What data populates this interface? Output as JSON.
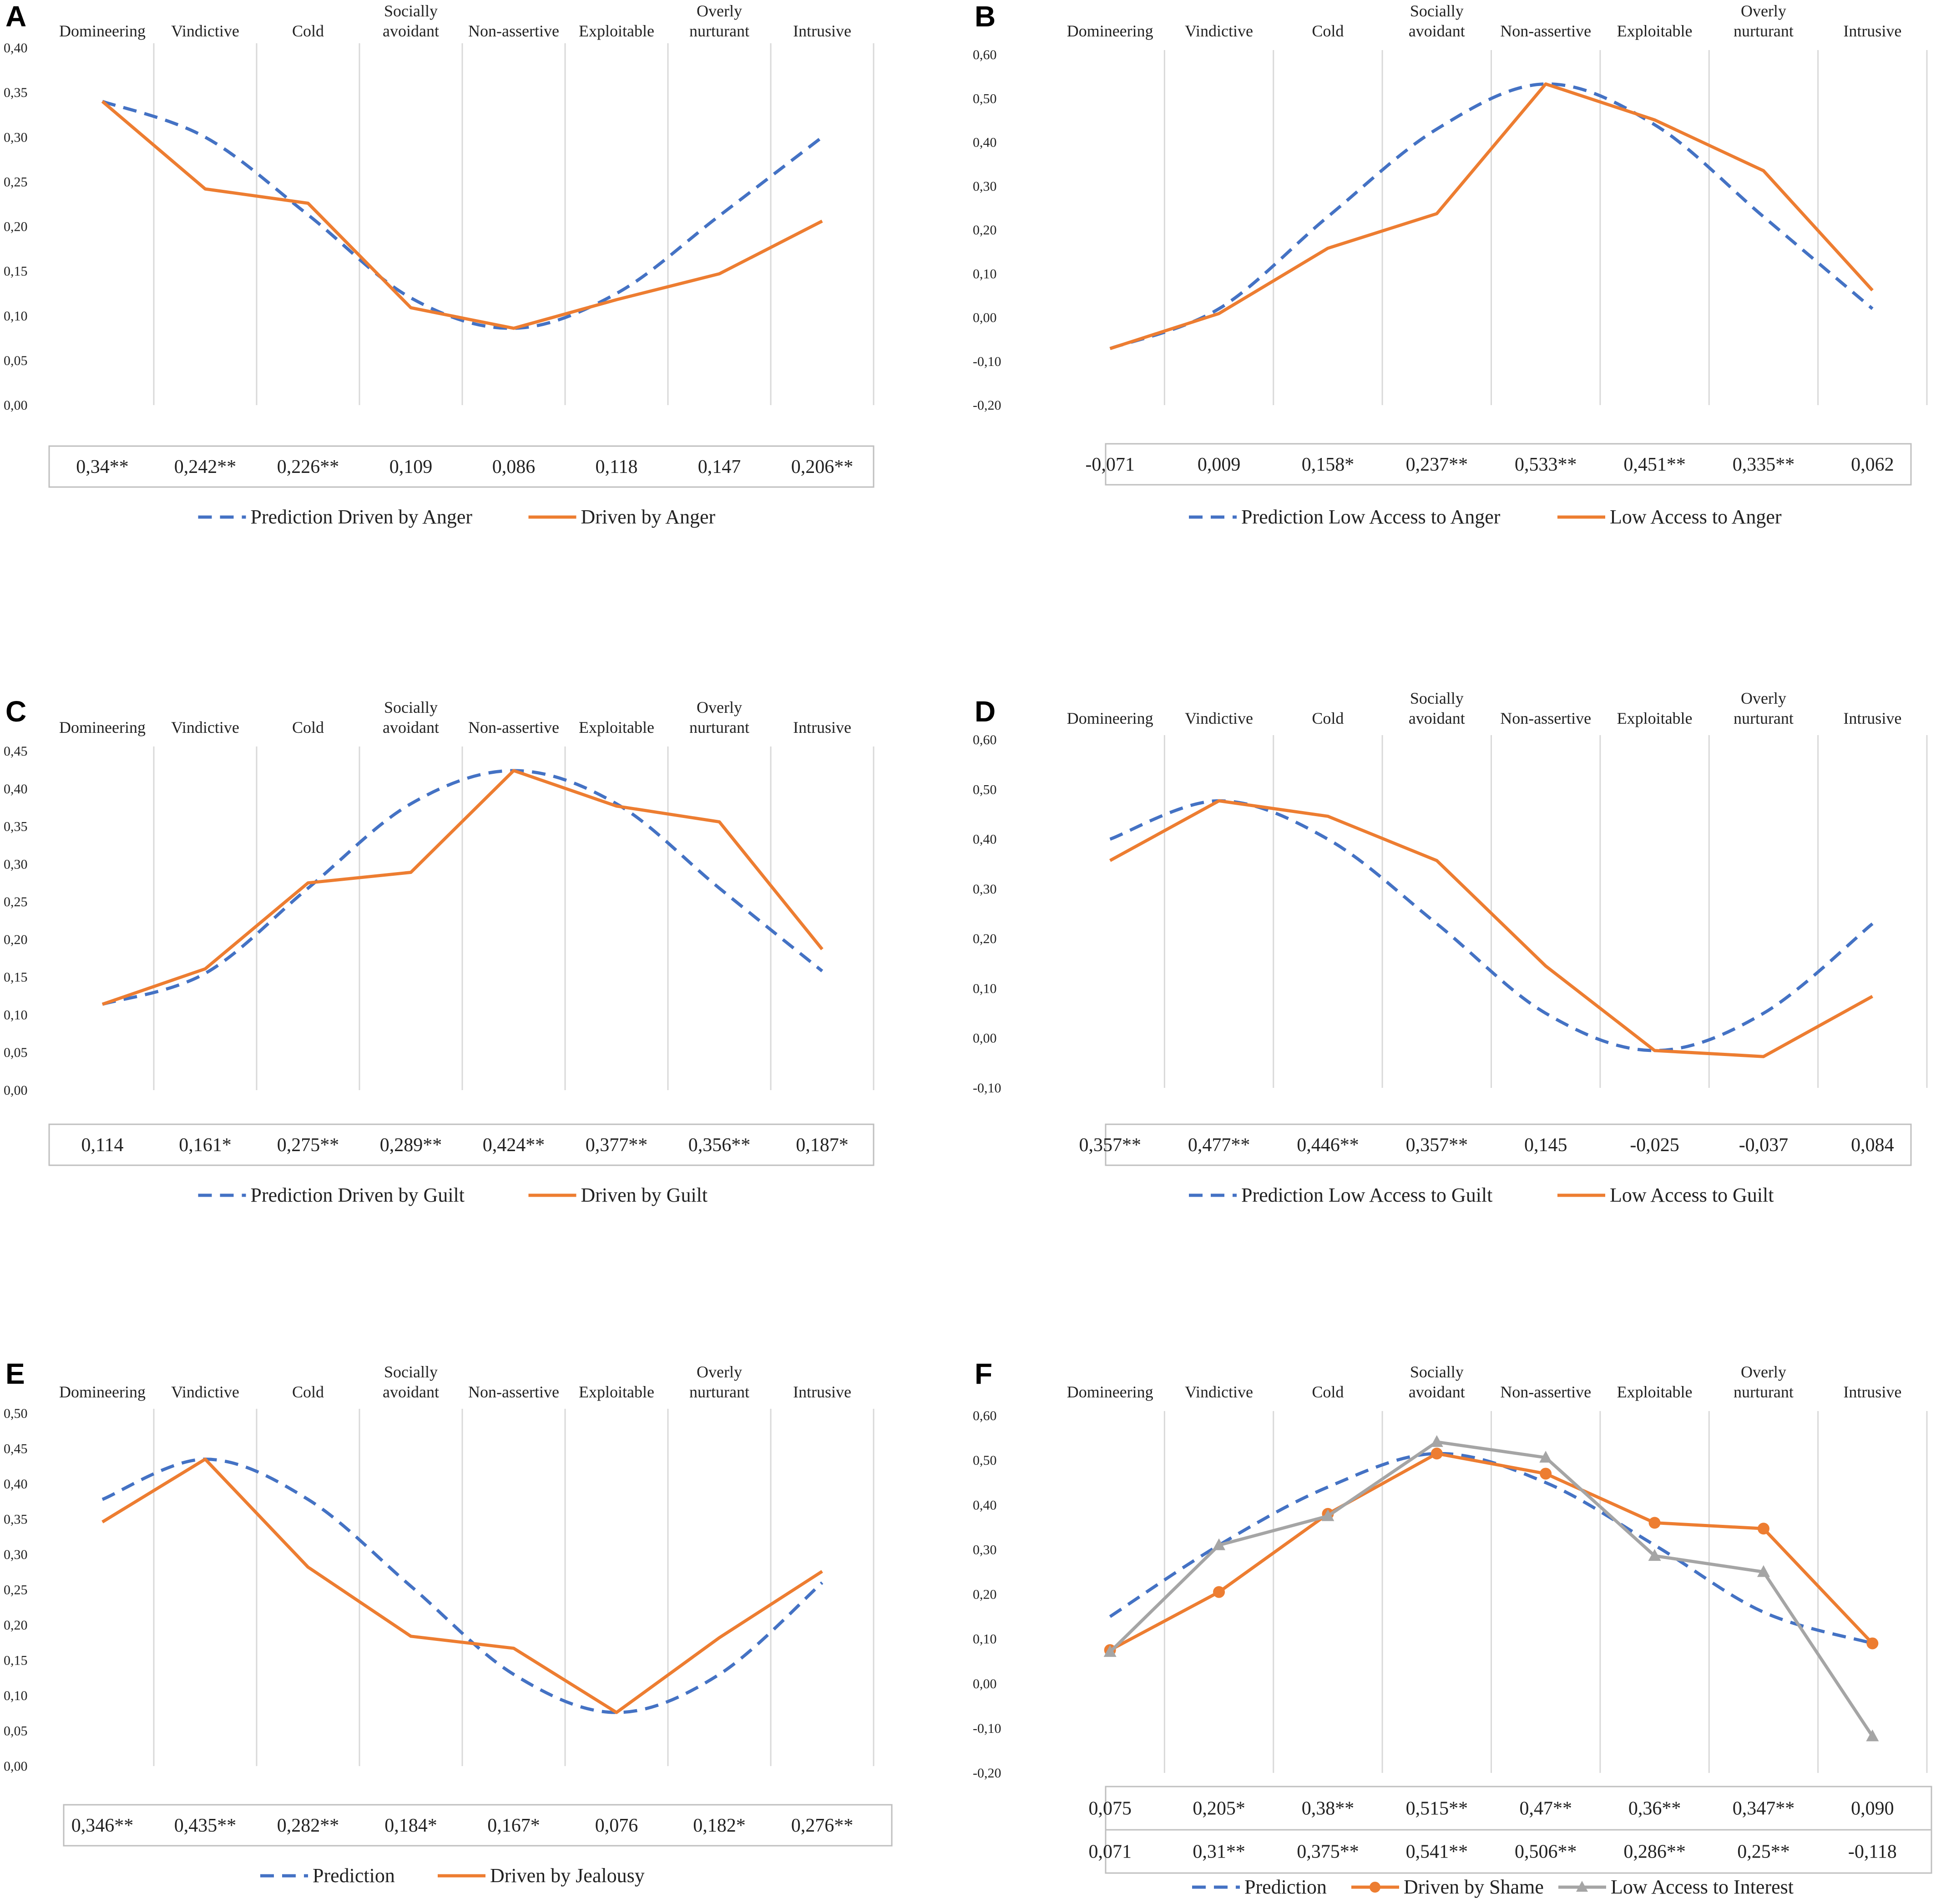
{
  "colors": {
    "prediction": "#4472C4",
    "observed": "#ED7D31",
    "secondary": "#A5A5A5",
    "grid": "#D9D9D9",
    "text": "#222222"
  },
  "chart_data": [
    {
      "panel": "A",
      "type": "line",
      "categories": [
        "Domineering",
        "Vindictive",
        "Cold",
        "Socially avoidant",
        "Non-assertive",
        "Exploitable",
        "Overly nurturant",
        "Intrusive"
      ],
      "y_ticks": [
        "0,00",
        "0,05",
        "0,10",
        "0,15",
        "0,20",
        "0,25",
        "0,30",
        "0,35",
        "0,40"
      ],
      "ylim": [
        0,
        0.4
      ],
      "series": [
        {
          "name": "Prediction Driven by Anger",
          "style": "dashed",
          "color": "#4472C4",
          "values": [
            0.34,
            0.3,
            0.213,
            0.12,
            0.086,
            0.125,
            0.212,
            0.3
          ]
        },
        {
          "name": "Driven by Anger",
          "style": "solid",
          "color": "#ED7D31",
          "values": [
            0.34,
            0.242,
            0.226,
            0.109,
            0.086,
            0.118,
            0.147,
            0.206
          ]
        }
      ],
      "table_rows": [
        {
          "marker": "",
          "values": [
            "0,34**",
            "0,242**",
            "0,226**",
            "0,109",
            "0,086",
            "0,118",
            "0,147",
            "0,206**"
          ]
        }
      ]
    },
    {
      "panel": "B",
      "type": "line",
      "categories": [
        "Domineering",
        "Vindictive",
        "Cold",
        "Socially avoidant",
        "Non-assertive",
        "Exploitable",
        "Overly nurturant",
        "Intrusive"
      ],
      "y_ticks": [
        "-0,20",
        "-0,10",
        "0,00",
        "0,10",
        "0,20",
        "0,30",
        "0,40",
        "0,50",
        "0,60"
      ],
      "ylim": [
        -0.2,
        0.6
      ],
      "series": [
        {
          "name": "Prediction Low Access to Anger",
          "style": "dashed",
          "color": "#4472C4",
          "values": [
            -0.071,
            0.02,
            0.23,
            0.43,
            0.533,
            0.44,
            0.23,
            0.02
          ]
        },
        {
          "name": "Low Access to Anger",
          "style": "solid",
          "color": "#ED7D31",
          "values": [
            -0.071,
            0.009,
            0.158,
            0.237,
            0.533,
            0.451,
            0.335,
            0.062
          ]
        }
      ],
      "table_rows": [
        {
          "marker": "",
          "values": [
            "-0,071",
            "0,009",
            "0,158*",
            "0,237**",
            "0,533**",
            "0,451**",
            "0,335**",
            "0,062"
          ]
        }
      ]
    },
    {
      "panel": "C",
      "type": "line",
      "categories": [
        "Domineering",
        "Vindictive",
        "Cold",
        "Socially avoidant",
        "Non-assertive",
        "Exploitable",
        "Overly nurturant",
        "Intrusive"
      ],
      "y_ticks": [
        "0,00",
        "0,05",
        "0,10",
        "0,15",
        "0,20",
        "0,25",
        "0,30",
        "0,35",
        "0,40",
        "0,45"
      ],
      "ylim": [
        0,
        0.45
      ],
      "series": [
        {
          "name": "Prediction Driven by Guilt",
          "style": "dashed",
          "color": "#4472C4",
          "values": [
            0.114,
            0.155,
            0.268,
            0.38,
            0.424,
            0.38,
            0.268,
            0.158
          ]
        },
        {
          "name": "Driven by Guilt",
          "style": "solid",
          "color": "#ED7D31",
          "values": [
            0.114,
            0.161,
            0.275,
            0.289,
            0.424,
            0.377,
            0.356,
            0.187
          ]
        }
      ],
      "table_rows": [
        {
          "marker": "",
          "values": [
            "0,114",
            "0,161*",
            "0,275**",
            "0,289**",
            "0,424**",
            "0,377**",
            "0,356**",
            "0,187*"
          ]
        }
      ]
    },
    {
      "panel": "D",
      "type": "line",
      "categories": [
        "Domineering",
        "Vindictive",
        "Cold",
        "Socially avoidant",
        "Non-assertive",
        "Exploitable",
        "Overly nurturant",
        "Intrusive"
      ],
      "y_ticks": [
        "-0,10",
        "0,00",
        "0,10",
        "0,20",
        "0,30",
        "0,40",
        "0,50",
        "0,60"
      ],
      "ylim": [
        -0.1,
        0.6
      ],
      "series": [
        {
          "name": "Prediction Low Access to Guilt",
          "style": "dashed",
          "color": "#4472C4",
          "values": [
            0.4,
            0.477,
            0.4,
            0.23,
            0.05,
            -0.025,
            0.05,
            0.23
          ]
        },
        {
          "name": "Low Access to Guilt",
          "style": "solid",
          "color": "#ED7D31",
          "values": [
            0.357,
            0.477,
            0.446,
            0.357,
            0.145,
            -0.025,
            -0.037,
            0.084
          ]
        }
      ],
      "table_rows": [
        {
          "marker": "",
          "values": [
            "0,357**",
            "0,477**",
            "0,446**",
            "0,357**",
            "0,145",
            "-0,025",
            "-0,037",
            "0,084"
          ]
        }
      ]
    },
    {
      "panel": "E",
      "type": "line",
      "categories": [
        "Domineering",
        "Vindictive",
        "Cold",
        "Socially avoidant",
        "Non-assertive",
        "Exploitable",
        "Overly nurturant",
        "Intrusive"
      ],
      "y_ticks": [
        "0,00",
        "0,05",
        "0,10",
        "0,15",
        "0,20",
        "0,25",
        "0,30",
        "0,35",
        "0,40",
        "0,45",
        "0,50"
      ],
      "ylim": [
        0,
        0.5
      ],
      "series": [
        {
          "name": "Prediction",
          "style": "dashed",
          "color": "#4472C4",
          "values": [
            0.378,
            0.435,
            0.378,
            0.255,
            0.13,
            0.076,
            0.13,
            0.26
          ]
        },
        {
          "name": "Driven by Jealousy",
          "style": "solid",
          "color": "#ED7D31",
          "values": [
            0.346,
            0.435,
            0.282,
            0.184,
            0.167,
            0.076,
            0.182,
            0.276
          ]
        }
      ],
      "table_rows": [
        {
          "marker": "",
          "values": [
            "0,346**",
            "0,435**",
            "0,282**",
            "0,184*",
            "0,167*",
            "0,076",
            "0,182*",
            "0,276**"
          ]
        }
      ]
    },
    {
      "panel": "F",
      "type": "line",
      "categories": [
        "Domineering",
        "Vindictive",
        "Cold",
        "Socially avoidant",
        "Non-assertive",
        "Exploitable",
        "Overly nurturant",
        "Intrusive"
      ],
      "y_ticks": [
        "-0,20",
        "-0,10",
        "0,00",
        "0,10",
        "0,20",
        "0,30",
        "0,40",
        "0,50",
        "0,60"
      ],
      "ylim": [
        -0.2,
        0.6
      ],
      "series": [
        {
          "name": "Prediction",
          "style": "dashed",
          "color": "#4472C4",
          "values": [
            0.15,
            0.31,
            0.44,
            0.515,
            0.45,
            0.31,
            0.16,
            0.09
          ]
        },
        {
          "name": "Driven by Shame",
          "style": "solid-circle",
          "color": "#ED7D31",
          "values": [
            0.075,
            0.205,
            0.38,
            0.515,
            0.47,
            0.36,
            0.347,
            0.09
          ]
        },
        {
          "name": "Low Access to Interest",
          "style": "solid-triangle",
          "color": "#A5A5A5",
          "values": [
            0.071,
            0.31,
            0.375,
            0.541,
            0.506,
            0.286,
            0.25,
            -0.118
          ]
        }
      ],
      "table_rows": [
        {
          "marker": "circle",
          "values": [
            "0,075",
            "0,205*",
            "0,38**",
            "0,515**",
            "0,47**",
            "0,36**",
            "0,347**",
            "0,090"
          ]
        },
        {
          "marker": "triangle",
          "values": [
            "0,071",
            "0,31**",
            "0,375**",
            "0,541**",
            "0,506**",
            "0,286**",
            "0,25**",
            "-0,118"
          ]
        }
      ]
    }
  ]
}
